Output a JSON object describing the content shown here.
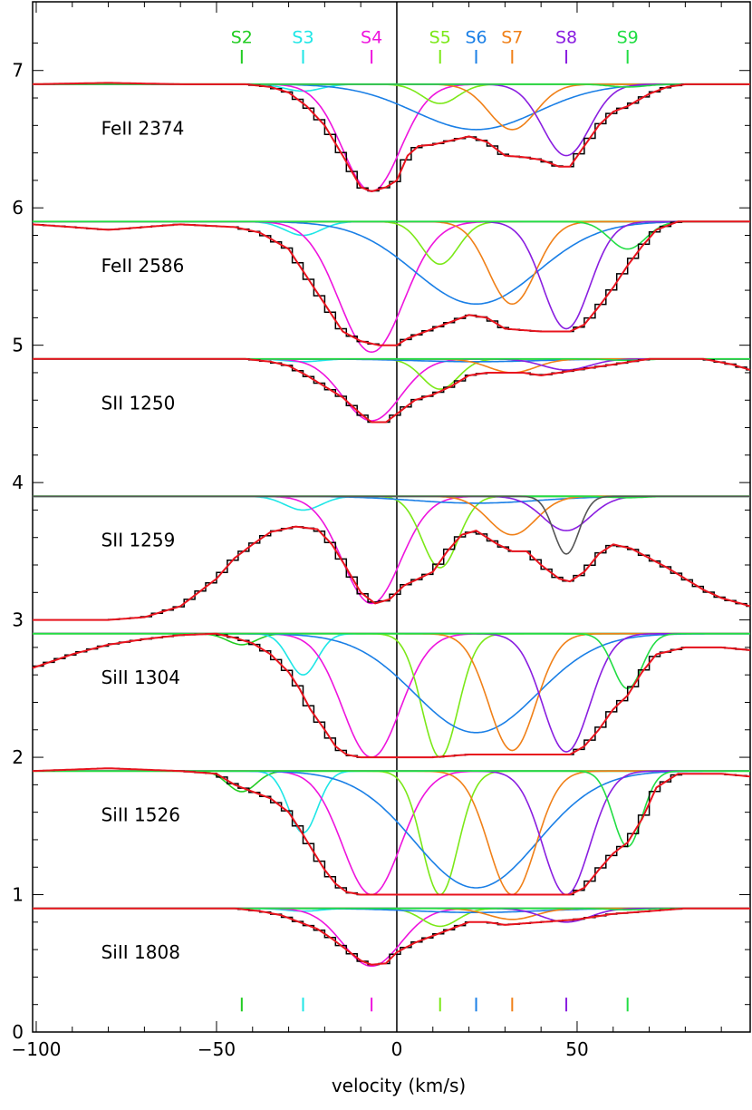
{
  "chart_data": {
    "type": "line",
    "xlabel": "velocity (km/s)",
    "ylabel": "",
    "xlim": [
      -101,
      98
    ],
    "ylim": [
      0,
      7.5
    ],
    "x_ticks": [
      -100,
      -50,
      0,
      50
    ],
    "y_ticks": [
      0,
      1,
      2,
      3,
      4,
      5,
      6,
      7
    ],
    "grid": false,
    "colors": {
      "data": "#000000",
      "fit": "#e8141e",
      "continuum": "#22c41e",
      "S2": "#22cc22",
      "S3": "#1ee6e6",
      "S4": "#ee14dd",
      "S5": "#7be818",
      "S6": "#1a7fe6",
      "S7": "#f08018",
      "S8": "#8a1ee0",
      "S9": "#22dd44",
      "extra": "#555555"
    },
    "components": [
      {
        "label": "S2",
        "v": -43
      },
      {
        "label": "S3",
        "v": -26
      },
      {
        "label": "S4",
        "v": -7
      },
      {
        "label": "S5",
        "v": 12
      },
      {
        "label": "S6",
        "v": 22
      },
      {
        "label": "S7",
        "v": 32
      },
      {
        "label": "S8",
        "v": 47
      },
      {
        "label": "S9",
        "v": 64
      }
    ],
    "panels": [
      {
        "label": "FeII  2374",
        "baseline": 6.9,
        "depth": 1,
        "profiles": {
          "S2": [
            0,
            10
          ],
          "S3": [
            0.05,
            5
          ],
          "S4": [
            0.78,
            8
          ],
          "S5": [
            0.14,
            5
          ],
          "S6": [
            0.33,
            17
          ],
          "S7": [
            0.33,
            6.5
          ],
          "S8": [
            0.52,
            6.5
          ],
          "S9": [
            0.02,
            5
          ]
        },
        "data": [
          [
            -101,
            6.9
          ],
          [
            -80,
            6.91
          ],
          [
            -60,
            6.9
          ],
          [
            -42,
            6.9
          ],
          [
            -35,
            6.88
          ],
          [
            -30,
            6.84
          ],
          [
            -25,
            6.74
          ],
          [
            -20,
            6.6
          ],
          [
            -15,
            6.38
          ],
          [
            -10,
            6.15
          ],
          [
            -7,
            6.12
          ],
          [
            -3,
            6.15
          ],
          [
            0,
            6.2
          ],
          [
            3,
            6.38
          ],
          [
            6,
            6.45
          ],
          [
            10,
            6.46
          ],
          [
            15,
            6.49
          ],
          [
            20,
            6.52
          ],
          [
            25,
            6.48
          ],
          [
            30,
            6.38
          ],
          [
            35,
            6.37
          ],
          [
            40,
            6.35
          ],
          [
            45,
            6.3
          ],
          [
            48,
            6.3
          ],
          [
            52,
            6.45
          ],
          [
            56,
            6.6
          ],
          [
            60,
            6.7
          ],
          [
            64,
            6.74
          ],
          [
            70,
            6.83
          ],
          [
            75,
            6.88
          ],
          [
            80,
            6.9
          ],
          [
            98,
            6.9
          ]
        ]
      },
      {
        "label": "FeII  2586",
        "baseline": 5.9,
        "depth": 1,
        "profiles": {
          "S2": [
            0,
            10
          ],
          "S3": [
            0.1,
            5
          ],
          "S4": [
            0.95,
            9
          ],
          "S5": [
            0.31,
            5
          ],
          "S6": [
            0.6,
            17
          ],
          "S7": [
            0.6,
            6.5
          ],
          "S8": [
            0.78,
            6.5
          ],
          "S9": [
            0.2,
            5
          ]
        },
        "data": [
          [
            -101,
            5.88
          ],
          [
            -90,
            5.86
          ],
          [
            -80,
            5.84
          ],
          [
            -70,
            5.86
          ],
          [
            -60,
            5.88
          ],
          [
            -45,
            5.86
          ],
          [
            -38,
            5.82
          ],
          [
            -30,
            5.7
          ],
          [
            -25,
            5.5
          ],
          [
            -20,
            5.3
          ],
          [
            -15,
            5.1
          ],
          [
            -10,
            5.03
          ],
          [
            -5,
            5.0
          ],
          [
            0,
            5.0
          ],
          [
            3,
            5.05
          ],
          [
            8,
            5.1
          ],
          [
            15,
            5.17
          ],
          [
            20,
            5.22
          ],
          [
            25,
            5.2
          ],
          [
            30,
            5.12
          ],
          [
            40,
            5.1
          ],
          [
            48,
            5.1
          ],
          [
            52,
            5.15
          ],
          [
            56,
            5.28
          ],
          [
            60,
            5.42
          ],
          [
            64,
            5.58
          ],
          [
            68,
            5.72
          ],
          [
            72,
            5.84
          ],
          [
            78,
            5.9
          ],
          [
            98,
            5.9
          ]
        ]
      },
      {
        "label": "SII  1250",
        "baseline": 4.9,
        "depth": 1,
        "profiles": {
          "S2": [
            0,
            10
          ],
          "S3": [
            0.02,
            5
          ],
          "S4": [
            0.45,
            8
          ],
          "S5": [
            0.22,
            5
          ],
          "S6": [
            0.02,
            17
          ],
          "S7": [
            0.1,
            6.5
          ],
          "S8": [
            0.08,
            6.5
          ],
          "S9": [
            0.01,
            5
          ]
        },
        "data": [
          [
            -101,
            4.9
          ],
          [
            -80,
            4.9
          ],
          [
            -60,
            4.9
          ],
          [
            -42,
            4.9
          ],
          [
            -35,
            4.88
          ],
          [
            -30,
            4.85
          ],
          [
            -25,
            4.78
          ],
          [
            -20,
            4.7
          ],
          [
            -15,
            4.62
          ],
          [
            -10,
            4.5
          ],
          [
            -7,
            4.44
          ],
          [
            -3,
            4.44
          ],
          [
            0,
            4.5
          ],
          [
            5,
            4.6
          ],
          [
            10,
            4.64
          ],
          [
            15,
            4.7
          ],
          [
            20,
            4.78
          ],
          [
            25,
            4.8
          ],
          [
            35,
            4.8
          ],
          [
            40,
            4.78
          ],
          [
            50,
            4.82
          ],
          [
            60,
            4.86
          ],
          [
            70,
            4.9
          ],
          [
            85,
            4.9
          ],
          [
            93,
            4.86
          ],
          [
            98,
            4.82
          ]
        ]
      },
      {
        "label": "SII  1259",
        "baseline": 3.9,
        "depth": 1,
        "profiles": {
          "S2": [
            0,
            10
          ],
          "S3": [
            0.1,
            5
          ],
          "S4": [
            0.78,
            8
          ],
          "S5": [
            0.52,
            5
          ],
          "S6": [
            0.05,
            17
          ],
          "S7": [
            0.28,
            6.5
          ],
          "S8": [
            0.25,
            6.5
          ],
          "S9": [
            0.01,
            5
          ]
        },
        "extra": {
          "v": 47,
          "depth": 0.42,
          "sigma": 3.5
        },
        "data": [
          [
            -101,
            3.0
          ],
          [
            -80,
            3.0
          ],
          [
            -70,
            3.02
          ],
          [
            -60,
            3.1
          ],
          [
            -55,
            3.2
          ],
          [
            -50,
            3.3
          ],
          [
            -45,
            3.45
          ],
          [
            -40,
            3.55
          ],
          [
            -35,
            3.64
          ],
          [
            -28,
            3.68
          ],
          [
            -22,
            3.66
          ],
          [
            -18,
            3.55
          ],
          [
            -14,
            3.38
          ],
          [
            -10,
            3.2
          ],
          [
            -6,
            3.12
          ],
          [
            -2,
            3.15
          ],
          [
            2,
            3.25
          ],
          [
            6,
            3.3
          ],
          [
            10,
            3.35
          ],
          [
            14,
            3.5
          ],
          [
            18,
            3.62
          ],
          [
            22,
            3.65
          ],
          [
            28,
            3.55
          ],
          [
            32,
            3.5
          ],
          [
            36,
            3.5
          ],
          [
            40,
            3.4
          ],
          [
            45,
            3.3
          ],
          [
            48,
            3.28
          ],
          [
            52,
            3.35
          ],
          [
            56,
            3.48
          ],
          [
            60,
            3.55
          ],
          [
            65,
            3.52
          ],
          [
            70,
            3.45
          ],
          [
            75,
            3.38
          ],
          [
            80,
            3.3
          ],
          [
            85,
            3.22
          ],
          [
            90,
            3.16
          ],
          [
            98,
            3.1
          ]
        ]
      },
      {
        "label": "SiII  1304",
        "baseline": 2.9,
        "depth": 1,
        "profiles": {
          "S2": [
            0.08,
            4
          ],
          "S3": [
            0.3,
            4
          ],
          "S4": [
            0.9,
            8
          ],
          "S5": [
            0.9,
            5
          ],
          "S6": [
            0.72,
            17
          ],
          "S7": [
            0.85,
            6.5
          ],
          "S8": [
            0.86,
            6.5
          ],
          "S9": [
            0.4,
            4
          ]
        },
        "data": [
          [
            -101,
            2.65
          ],
          [
            -90,
            2.75
          ],
          [
            -80,
            2.82
          ],
          [
            -70,
            2.86
          ],
          [
            -60,
            2.89
          ],
          [
            -50,
            2.9
          ],
          [
            -45,
            2.87
          ],
          [
            -40,
            2.83
          ],
          [
            -35,
            2.75
          ],
          [
            -30,
            2.62
          ],
          [
            -27,
            2.5
          ],
          [
            -24,
            2.35
          ],
          [
            -20,
            2.2
          ],
          [
            -17,
            2.08
          ],
          [
            -14,
            2.02
          ],
          [
            -10,
            2.0
          ],
          [
            0,
            2.0
          ],
          [
            10,
            2.0
          ],
          [
            20,
            2.02
          ],
          [
            30,
            2.02
          ],
          [
            40,
            2.02
          ],
          [
            48,
            2.02
          ],
          [
            52,
            2.08
          ],
          [
            56,
            2.2
          ],
          [
            60,
            2.35
          ],
          [
            64,
            2.45
          ],
          [
            68,
            2.62
          ],
          [
            72,
            2.75
          ],
          [
            80,
            2.8
          ],
          [
            90,
            2.8
          ],
          [
            98,
            2.78
          ]
        ]
      },
      {
        "label": "SiII  1526",
        "baseline": 1.9,
        "depth": 1,
        "profiles": {
          "S2": [
            0.15,
            4
          ],
          "S3": [
            0.45,
            4
          ],
          "S4": [
            0.9,
            8
          ],
          "S5": [
            0.9,
            5
          ],
          "S6": [
            0.85,
            17
          ],
          "S7": [
            0.9,
            6.5
          ],
          "S8": [
            0.9,
            6.5
          ],
          "S9": [
            0.55,
            4
          ]
        },
        "data": [
          [
            -101,
            1.9
          ],
          [
            -80,
            1.92
          ],
          [
            -60,
            1.9
          ],
          [
            -50,
            1.88
          ],
          [
            -45,
            1.8
          ],
          [
            -40,
            1.75
          ],
          [
            -35,
            1.7
          ],
          [
            -30,
            1.6
          ],
          [
            -27,
            1.48
          ],
          [
            -24,
            1.35
          ],
          [
            -20,
            1.18
          ],
          [
            -17,
            1.08
          ],
          [
            -14,
            1.02
          ],
          [
            -10,
            1.0
          ],
          [
            0,
            1.0
          ],
          [
            20,
            1.0
          ],
          [
            40,
            1.0
          ],
          [
            48,
            1.0
          ],
          [
            52,
            1.05
          ],
          [
            56,
            1.18
          ],
          [
            60,
            1.3
          ],
          [
            64,
            1.38
          ],
          [
            68,
            1.55
          ],
          [
            72,
            1.78
          ],
          [
            78,
            1.88
          ],
          [
            90,
            1.88
          ],
          [
            98,
            1.86
          ]
        ]
      },
      {
        "label": "SiII  1808",
        "baseline": 0.9,
        "depth": 1,
        "profiles": {
          "S2": [
            0,
            10
          ],
          "S3": [
            0.02,
            5
          ],
          "S4": [
            0.42,
            8
          ],
          "S5": [
            0.13,
            5
          ],
          "S6": [
            0.03,
            17
          ],
          "S7": [
            0.08,
            6.5
          ],
          "S8": [
            0.1,
            6.5
          ],
          "S9": [
            0.01,
            5
          ]
        },
        "data": [
          [
            -101,
            0.9
          ],
          [
            -80,
            0.9
          ],
          [
            -60,
            0.9
          ],
          [
            -45,
            0.9
          ],
          [
            -38,
            0.88
          ],
          [
            -32,
            0.85
          ],
          [
            -27,
            0.8
          ],
          [
            -22,
            0.75
          ],
          [
            -18,
            0.68
          ],
          [
            -14,
            0.6
          ],
          [
            -10,
            0.52
          ],
          [
            -7,
            0.49
          ],
          [
            -3,
            0.5
          ],
          [
            0,
            0.58
          ],
          [
            5,
            0.65
          ],
          [
            10,
            0.7
          ],
          [
            15,
            0.75
          ],
          [
            20,
            0.8
          ],
          [
            25,
            0.8
          ],
          [
            30,
            0.78
          ],
          [
            40,
            0.8
          ],
          [
            50,
            0.82
          ],
          [
            60,
            0.86
          ],
          [
            70,
            0.88
          ],
          [
            80,
            0.9
          ],
          [
            98,
            0.9
          ]
        ]
      }
    ]
  }
}
